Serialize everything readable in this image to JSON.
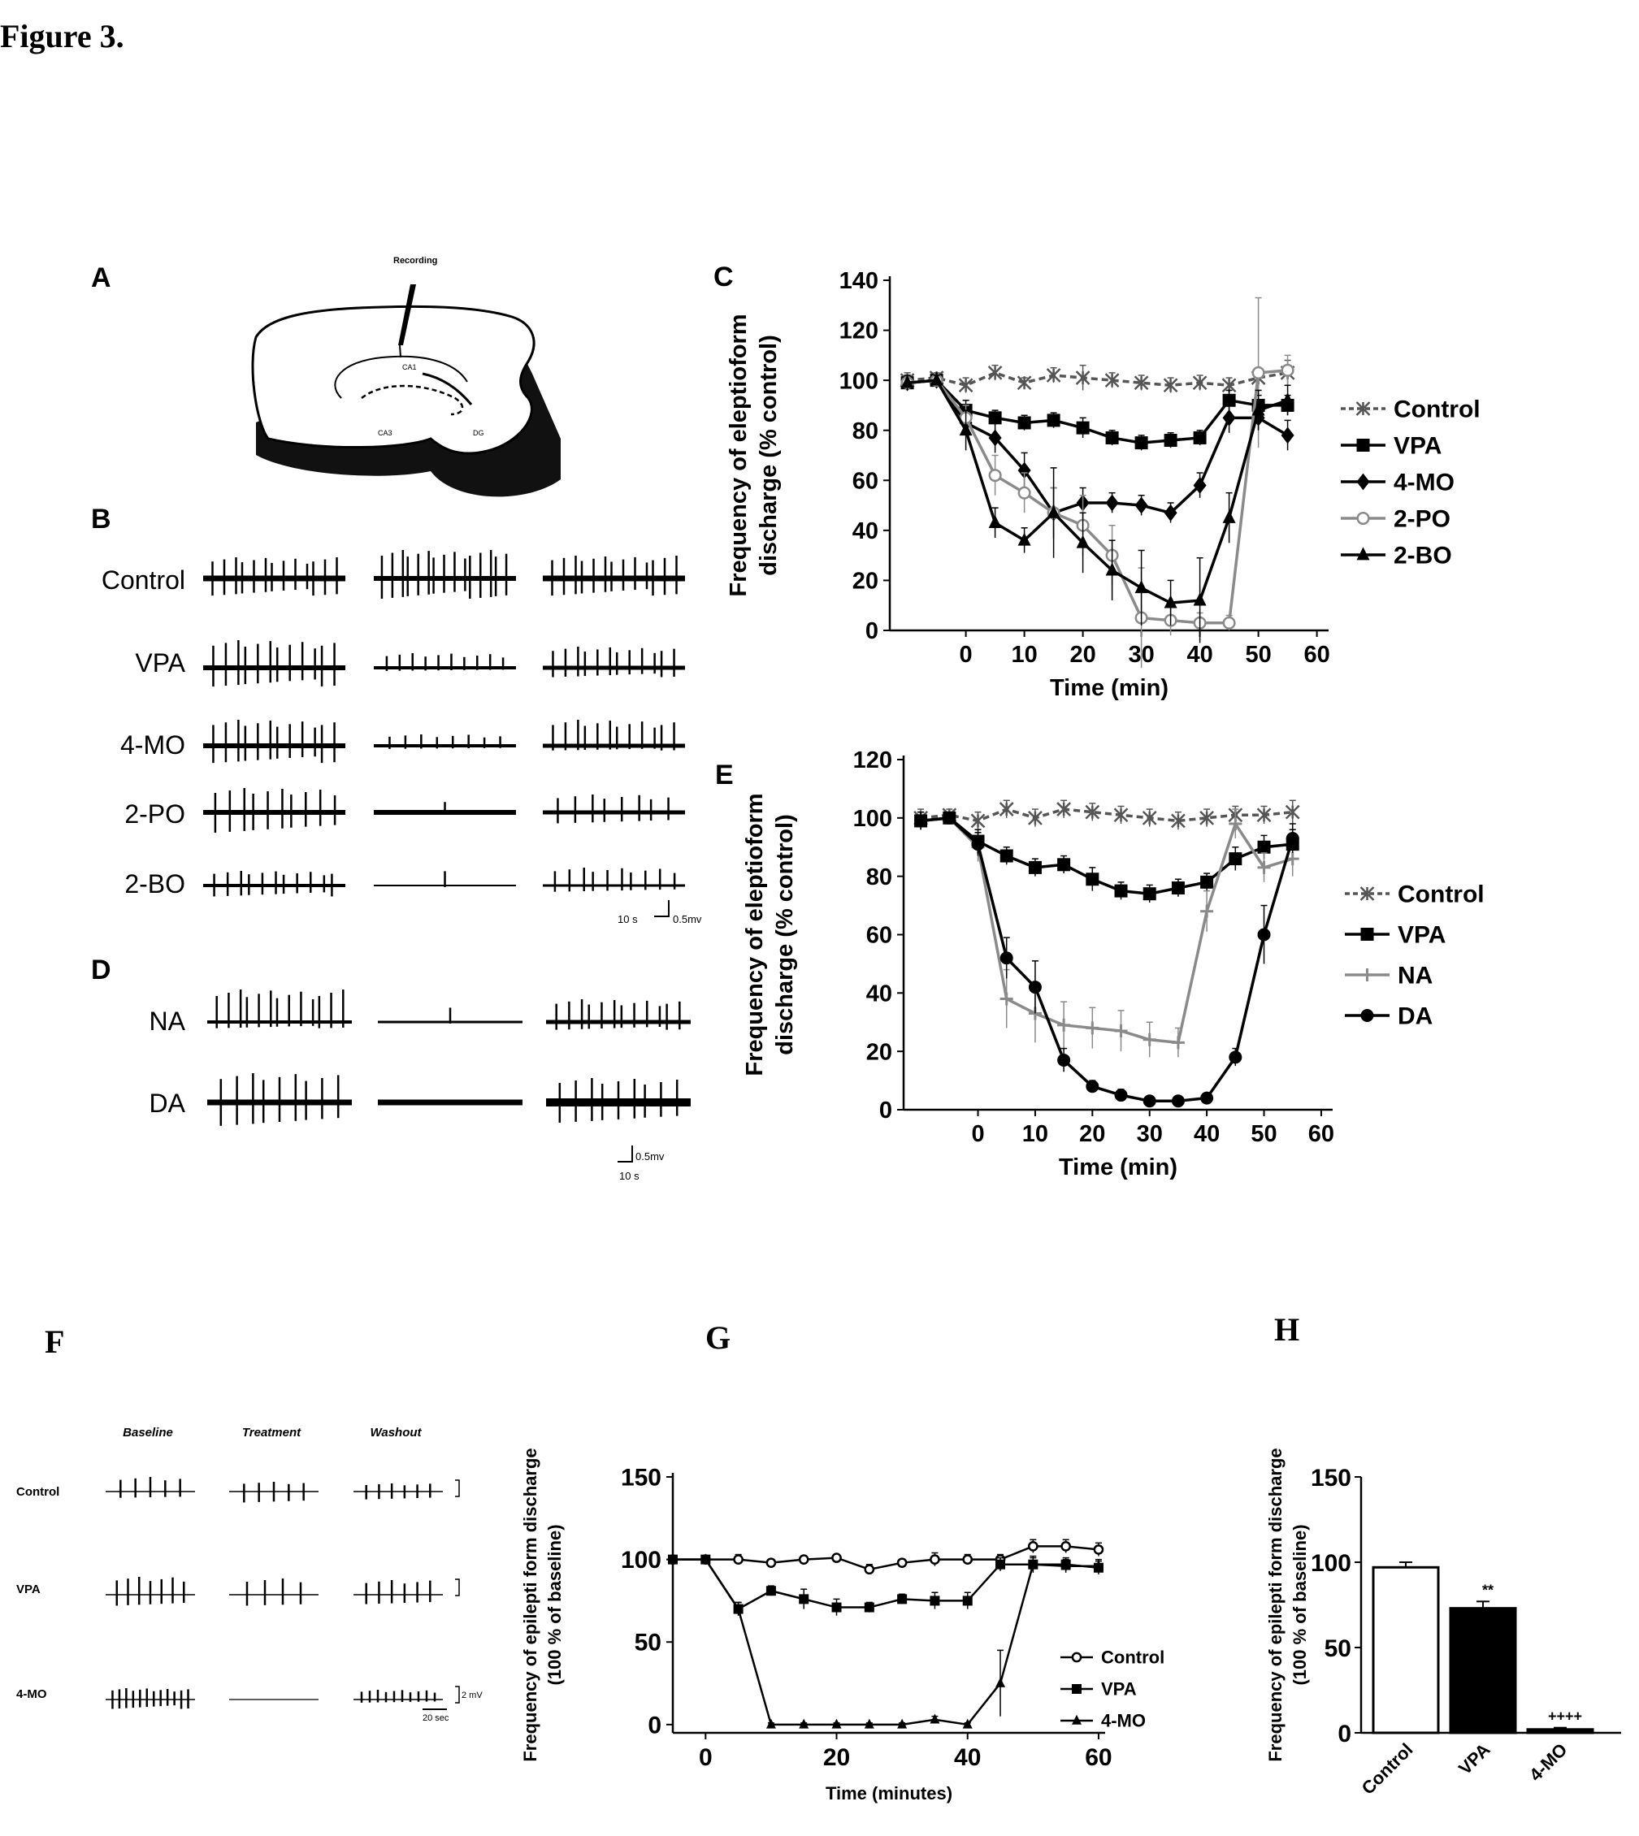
{
  "figure_title": "Figure 3.",
  "panels": {
    "A": {
      "letter": "A",
      "label_recording": "Recording",
      "region_ca1": "CA1",
      "region_ca3": "CA3",
      "region_dg": "DG"
    },
    "B": {
      "letter": "B",
      "rows": [
        "Control",
        "VPA",
        "4-MO",
        "2-PO",
        "2-BO"
      ],
      "scale_time": "10 s",
      "scale_volt": "0.5mv"
    },
    "D": {
      "letter": "D",
      "rows": [
        "NA",
        "DA"
      ],
      "scale_time": "10 s",
      "scale_volt": "0.5mv"
    },
    "F": {
      "letter": "F",
      "columns": [
        "Baseline",
        "Treatment",
        "Washout"
      ],
      "rows": [
        "Control",
        "VPA",
        "4-MO"
      ],
      "scale_volt": "2 mV",
      "scale_time": "20 sec"
    },
    "C": {
      "letter": "C"
    },
    "E": {
      "letter": "E"
    },
    "G": {
      "letter": "G"
    },
    "H": {
      "letter": "H"
    }
  },
  "chart_data": [
    {
      "id": "C",
      "type": "line",
      "xlabel": "Time (min)",
      "ylabel_line1": "Frequency of eleptioform",
      "ylabel_line2": "discharge (% control)",
      "xlim": [
        -13,
        62
      ],
      "ylim": [
        0,
        140
      ],
      "xticks": [
        0,
        10,
        20,
        30,
        40,
        50,
        60
      ],
      "yticks": [
        0,
        20,
        40,
        60,
        80,
        100,
        120,
        140
      ],
      "legend": "right",
      "series": [
        {
          "name": "Control",
          "marker": "x",
          "style": "dashed",
          "color": "#555555",
          "x": [
            -10,
            -5,
            0,
            5,
            10,
            15,
            20,
            25,
            30,
            35,
            40,
            45,
            50,
            55
          ],
          "y": [
            100,
            101,
            98,
            103,
            99,
            102,
            101,
            100,
            99,
            98,
            99,
            98,
            101,
            103
          ],
          "err": [
            3,
            2,
            3,
            3,
            2,
            3,
            5,
            3,
            3,
            3,
            3,
            3,
            4,
            5
          ]
        },
        {
          "name": "VPA",
          "marker": "square",
          "style": "solid",
          "color": "#000000",
          "x": [
            -10,
            -5,
            0,
            5,
            10,
            15,
            20,
            25,
            30,
            35,
            40,
            45,
            50,
            55
          ],
          "y": [
            99,
            100,
            88,
            85,
            83,
            84,
            81,
            77,
            75,
            76,
            77,
            92,
            90,
            90
          ],
          "err": [
            3,
            2,
            4,
            3,
            3,
            3,
            4,
            3,
            3,
            3,
            3,
            4,
            4,
            4
          ]
        },
        {
          "name": "4-MO",
          "marker": "diamond",
          "style": "solid",
          "color": "#000000",
          "x": [
            -10,
            -5,
            0,
            5,
            10,
            15,
            20,
            25,
            30,
            35,
            40,
            45,
            50,
            55
          ],
          "y": [
            99,
            100,
            83,
            77,
            64,
            47,
            51,
            51,
            50,
            47,
            58,
            85,
            85,
            78
          ],
          "err": [
            3,
            2,
            5,
            6,
            7,
            10,
            6,
            4,
            4,
            4,
            5,
            6,
            5,
            6
          ]
        },
        {
          "name": "2-PO",
          "marker": "circle-open",
          "style": "solid",
          "color": "#8a8a8a",
          "x": [
            -10,
            -5,
            0,
            5,
            10,
            15,
            20,
            25,
            30,
            35,
            40,
            45,
            50,
            55
          ],
          "y": [
            99,
            100,
            85,
            62,
            55,
            47,
            42,
            30,
            5,
            4,
            3,
            3,
            103,
            104
          ],
          "err": [
            3,
            2,
            5,
            8,
            8,
            10,
            12,
            12,
            20,
            6,
            4,
            3,
            30,
            6
          ]
        },
        {
          "name": "2-BO",
          "marker": "triangle",
          "style": "solid",
          "color": "#000000",
          "x": [
            -10,
            -5,
            0,
            5,
            10,
            15,
            20,
            25,
            30,
            35,
            40,
            45,
            50,
            55
          ],
          "y": [
            99,
            100,
            80,
            43,
            36,
            47,
            35,
            24,
            17,
            11,
            12,
            45,
            88,
            92
          ],
          "err": [
            3,
            2,
            8,
            6,
            5,
            18,
            12,
            12,
            15,
            9,
            17,
            10,
            8,
            6
          ]
        }
      ]
    },
    {
      "id": "E",
      "type": "line",
      "xlabel": "Time (min)",
      "ylabel_line1": "Frequency of eleptioform",
      "ylabel_line2": "discharge (% control)",
      "xlim": [
        -13,
        62
      ],
      "ylim": [
        0,
        120
      ],
      "xticks": [
        0,
        10,
        20,
        30,
        40,
        50,
        60
      ],
      "yticks": [
        0,
        20,
        40,
        60,
        80,
        100,
        120
      ],
      "legend": "right",
      "series": [
        {
          "name": "Control",
          "marker": "x",
          "style": "dashed",
          "color": "#555555",
          "x": [
            -10,
            -5,
            0,
            5,
            10,
            15,
            20,
            25,
            30,
            35,
            40,
            45,
            50,
            55
          ],
          "y": [
            100,
            101,
            99,
            103,
            100,
            103,
            102,
            101,
            100,
            99,
            100,
            101,
            101,
            102
          ],
          "err": [
            3,
            2,
            3,
            3,
            3,
            3,
            3,
            3,
            3,
            3,
            3,
            3,
            3,
            4
          ]
        },
        {
          "name": "VPA",
          "marker": "square",
          "style": "solid",
          "color": "#000000",
          "x": [
            -10,
            -5,
            0,
            5,
            10,
            15,
            20,
            25,
            30,
            35,
            40,
            45,
            50,
            55
          ],
          "y": [
            99,
            100,
            92,
            87,
            83,
            84,
            79,
            75,
            74,
            76,
            78,
            86,
            90,
            91
          ],
          "err": [
            3,
            2,
            4,
            3,
            3,
            3,
            4,
            3,
            3,
            3,
            3,
            4,
            4,
            5
          ]
        },
        {
          "name": "NA",
          "marker": "plus",
          "style": "solid",
          "color": "#8a8a8a",
          "x": [
            -10,
            -5,
            0,
            5,
            10,
            15,
            20,
            25,
            30,
            35,
            40,
            45,
            50,
            55
          ],
          "y": [
            99,
            100,
            90,
            38,
            33,
            29,
            28,
            27,
            24,
            23,
            68,
            98,
            83,
            86
          ],
          "err": [
            3,
            2,
            5,
            10,
            10,
            8,
            7,
            7,
            6,
            5,
            7,
            5,
            5,
            6
          ]
        },
        {
          "name": "DA",
          "marker": "circle",
          "style": "solid",
          "color": "#000000",
          "x": [
            -10,
            -5,
            0,
            5,
            10,
            15,
            20,
            25,
            30,
            35,
            40,
            45,
            50,
            55
          ],
          "y": [
            99,
            100,
            91,
            52,
            42,
            17,
            8,
            5,
            3,
            3,
            4,
            18,
            60,
            93
          ],
          "err": [
            3,
            2,
            4,
            7,
            9,
            4,
            2,
            2,
            1,
            1,
            1,
            3,
            10,
            5
          ]
        }
      ]
    },
    {
      "id": "G",
      "type": "line",
      "xlabel": "Time (minutes)",
      "ylabel_line1": "Frequency of epilepti form discharge",
      "ylabel_line2": "(100 % of baseline)",
      "xlim": [
        -5,
        61
      ],
      "ylim": [
        -5,
        150
      ],
      "xticks": [
        0,
        20,
        40,
        60
      ],
      "yticks": [
        0,
        50,
        100,
        150
      ],
      "legend": "bottom-right",
      "series": [
        {
          "name": "Control",
          "marker": "circle-open",
          "style": "solid",
          "color": "#000000",
          "x": [
            -5,
            0,
            5,
            10,
            15,
            20,
            25,
            30,
            35,
            40,
            45,
            50,
            55,
            60
          ],
          "y": [
            100,
            100,
            100,
            98,
            100,
            101,
            94,
            98,
            100,
            100,
            100,
            108,
            108,
            106
          ],
          "err": [
            2,
            2,
            3,
            2,
            2,
            2,
            3,
            2,
            4,
            3,
            3,
            4,
            4,
            4
          ]
        },
        {
          "name": "VPA",
          "marker": "square",
          "style": "solid",
          "color": "#000000",
          "x": [
            -5,
            0,
            5,
            10,
            15,
            20,
            25,
            30,
            35,
            40,
            45,
            50,
            55,
            60
          ],
          "y": [
            100,
            100,
            70,
            81,
            76,
            71,
            71,
            76,
            75,
            75,
            97,
            97,
            97,
            95
          ],
          "err": [
            2,
            2,
            4,
            3,
            6,
            5,
            3,
            3,
            5,
            5,
            4,
            4,
            4,
            4
          ]
        },
        {
          "name": "4-MO",
          "marker": "triangle",
          "style": "solid",
          "color": "#000000",
          "x": [
            -5,
            0,
            5,
            10,
            15,
            20,
            25,
            30,
            35,
            40,
            45,
            50,
            55,
            60
          ],
          "y": [
            100,
            100,
            70,
            0,
            0,
            0,
            0,
            0,
            3,
            0,
            25,
            97,
            96,
            96
          ],
          "err": [
            2,
            2,
            4,
            1,
            1,
            1,
            1,
            1,
            2,
            1,
            20,
            5,
            4,
            4
          ]
        }
      ]
    },
    {
      "id": "H",
      "type": "bar",
      "ylabel_line1": "Frequency of epilepti form discharge",
      "ylabel_line2": "(100 % of baseline)",
      "ylim": [
        0,
        150
      ],
      "yticks": [
        0,
        50,
        100,
        150
      ],
      "categories": [
        "Control",
        "VPA",
        "4-MO"
      ],
      "values": [
        97,
        73,
        2
      ],
      "err": [
        3,
        4,
        1
      ],
      "fills": [
        "#ffffff",
        "#000000",
        "#000000"
      ],
      "annotations": [
        "",
        "**",
        "++++"
      ]
    }
  ]
}
